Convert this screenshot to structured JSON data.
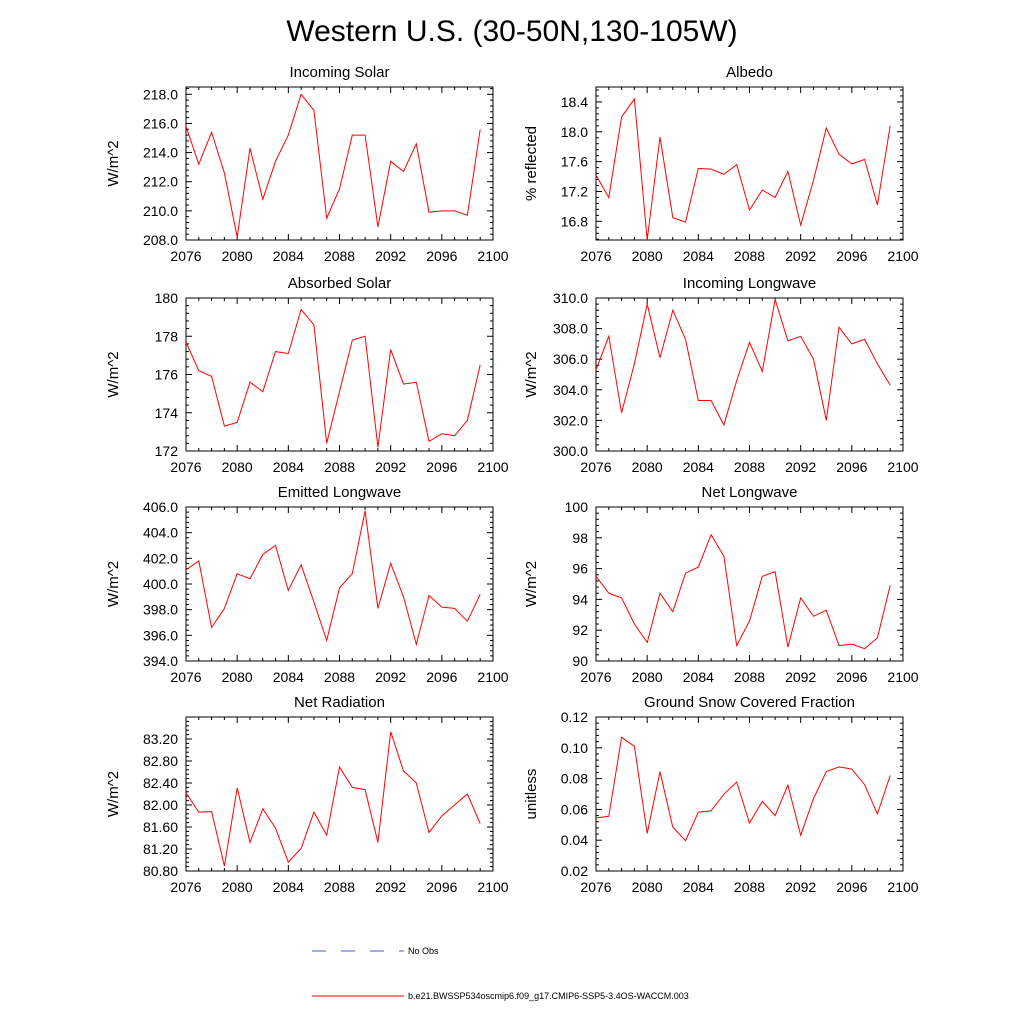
{
  "title": "Western U.S. (30-50N,130-105W)",
  "legend": {
    "obs_label": "No Obs",
    "model_label": "b.e21.BWSSP534oscmip6.f09_g17.CMIP6-SSP5-3.4OS-WACCM.003",
    "obs_color": "#4a55d6",
    "model_color": "#ff0000"
  },
  "colors": {
    "line": "#ff0000",
    "axis": "#000000"
  },
  "chart_data": [
    {
      "type": "line",
      "title": "Incoming Solar",
      "ylabel": "W/m^2",
      "xlim": [
        2076,
        2100
      ],
      "ylim": [
        208,
        218.5
      ],
      "xticks": [
        2076,
        2080,
        2084,
        2088,
        2092,
        2096,
        2100
      ],
      "yticks": [
        208,
        210,
        212,
        214,
        216,
        218
      ],
      "ydecimals": 1,
      "x": [
        2076,
        2077,
        2078,
        2079,
        2080,
        2081,
        2082,
        2083,
        2084,
        2085,
        2086,
        2087,
        2088,
        2089,
        2090,
        2091,
        2092,
        2093,
        2094,
        2095,
        2096,
        2097,
        2098,
        2099
      ],
      "y": [
        215.8,
        213.2,
        215.4,
        212.6,
        208.2,
        214.3,
        210.8,
        213.4,
        215.2,
        218.0,
        216.9,
        209.5,
        211.5,
        215.2,
        215.2,
        208.9,
        213.4,
        212.7,
        214.6,
        209.9,
        210.0,
        210.0,
        209.7,
        215.6
      ]
    },
    {
      "type": "line",
      "title": "Albedo",
      "ylabel": "% reflected",
      "xlim": [
        2076,
        2100
      ],
      "ylim": [
        16.55,
        18.6
      ],
      "xticks": [
        2076,
        2080,
        2084,
        2088,
        2092,
        2096,
        2100
      ],
      "yticks": [
        16.8,
        17.2,
        17.6,
        18.0,
        18.4
      ],
      "ydecimals": 1,
      "x": [
        2076,
        2077,
        2078,
        2079,
        2080,
        2081,
        2082,
        2083,
        2084,
        2085,
        2086,
        2087,
        2088,
        2089,
        2090,
        2091,
        2092,
        2093,
        2094,
        2095,
        2096,
        2097,
        2098,
        2099
      ],
      "y": [
        17.42,
        17.12,
        18.2,
        18.44,
        16.55,
        17.93,
        16.85,
        16.79,
        17.51,
        17.5,
        17.43,
        17.56,
        16.95,
        17.22,
        17.12,
        17.47,
        16.75,
        17.35,
        18.05,
        17.7,
        17.57,
        17.63,
        17.02,
        18.08
      ]
    },
    {
      "type": "line",
      "title": "Absorbed Solar",
      "ylabel": "W/m^2",
      "xlim": [
        2076,
        2100
      ],
      "ylim": [
        172,
        180
      ],
      "xticks": [
        2076,
        2080,
        2084,
        2088,
        2092,
        2096,
        2100
      ],
      "yticks": [
        172,
        174,
        176,
        178,
        180
      ],
      "ydecimals": 0,
      "x": [
        2076,
        2077,
        2078,
        2079,
        2080,
        2081,
        2082,
        2083,
        2084,
        2085,
        2086,
        2087,
        2088,
        2089,
        2090,
        2091,
        2092,
        2093,
        2094,
        2095,
        2096,
        2097,
        2098,
        2099
      ],
      "y": [
        177.7,
        176.2,
        175.9,
        173.3,
        173.5,
        175.6,
        175.1,
        177.2,
        177.1,
        179.4,
        178.6,
        172.4,
        175.1,
        177.8,
        178.0,
        172.2,
        177.3,
        175.5,
        175.6,
        172.5,
        172.9,
        172.8,
        173.6,
        176.5
      ]
    },
    {
      "type": "line",
      "title": "Incoming Longwave",
      "ylabel": "W/m^2",
      "xlim": [
        2076,
        2100
      ],
      "ylim": [
        300,
        310
      ],
      "xticks": [
        2076,
        2080,
        2084,
        2088,
        2092,
        2096,
        2100
      ],
      "yticks": [
        300,
        302,
        304,
        306,
        308,
        310
      ],
      "ydecimals": 1,
      "x": [
        2076,
        2077,
        2078,
        2079,
        2080,
        2081,
        2082,
        2083,
        2084,
        2085,
        2086,
        2087,
        2088,
        2089,
        2090,
        2091,
        2092,
        2093,
        2094,
        2095,
        2096,
        2097,
        2098,
        2099
      ],
      "y": [
        305.3,
        307.5,
        302.5,
        305.7,
        309.6,
        306.1,
        309.2,
        307.3,
        303.3,
        303.3,
        301.7,
        304.6,
        307.1,
        305.2,
        309.9,
        307.2,
        307.5,
        306.0,
        302.0,
        308.1,
        307.0,
        307.3,
        305.7,
        304.3
      ]
    },
    {
      "type": "line",
      "title": "Emitted Longwave",
      "ylabel": "W/m^2",
      "xlim": [
        2076,
        2100
      ],
      "ylim": [
        394,
        406
      ],
      "xticks": [
        2076,
        2080,
        2084,
        2088,
        2092,
        2096,
        2100
      ],
      "yticks": [
        394,
        396,
        398,
        400,
        402,
        404,
        406
      ],
      "ydecimals": 1,
      "x": [
        2076,
        2077,
        2078,
        2079,
        2080,
        2081,
        2082,
        2083,
        2084,
        2085,
        2086,
        2087,
        2088,
        2089,
        2090,
        2091,
        2092,
        2093,
        2094,
        2095,
        2096,
        2097,
        2098,
        2099
      ],
      "y": [
        401.1,
        401.8,
        396.6,
        398.1,
        400.8,
        400.4,
        402.3,
        403.0,
        399.5,
        401.5,
        398.6,
        395.6,
        399.7,
        400.8,
        405.7,
        398.1,
        401.6,
        399.0,
        395.3,
        399.1,
        398.2,
        398.1,
        397.1,
        399.2
      ]
    },
    {
      "type": "line",
      "title": "Net Longwave",
      "ylabel": "W/m^2",
      "xlim": [
        2076,
        2100
      ],
      "ylim": [
        90,
        100
      ],
      "xticks": [
        2076,
        2080,
        2084,
        2088,
        2092,
        2096,
        2100
      ],
      "yticks": [
        90,
        92,
        94,
        96,
        98,
        100
      ],
      "ydecimals": 0,
      "x": [
        2076,
        2077,
        2078,
        2079,
        2080,
        2081,
        2082,
        2083,
        2084,
        2085,
        2086,
        2087,
        2088,
        2089,
        2090,
        2091,
        2092,
        2093,
        2094,
        2095,
        2096,
        2097,
        2098,
        2099
      ],
      "y": [
        95.5,
        94.4,
        94.1,
        92.4,
        91.2,
        94.4,
        93.2,
        95.7,
        96.1,
        98.2,
        96.8,
        91.0,
        92.6,
        95.5,
        95.8,
        90.9,
        94.1,
        92.9,
        93.3,
        91.0,
        91.1,
        90.8,
        91.5,
        94.9
      ]
    },
    {
      "type": "line",
      "title": "Net Radiation",
      "ylabel": "W/m^2",
      "xlim": [
        2076,
        2100
      ],
      "ylim": [
        80.8,
        83.6
      ],
      "xticks": [
        2076,
        2080,
        2084,
        2088,
        2092,
        2096,
        2100
      ],
      "yticks": [
        80.8,
        81.2,
        81.6,
        82.0,
        82.4,
        82.8,
        83.2
      ],
      "ydecimals": 2,
      "x": [
        2076,
        2077,
        2078,
        2079,
        2080,
        2081,
        2082,
        2083,
        2084,
        2085,
        2086,
        2087,
        2088,
        2089,
        2090,
        2091,
        2092,
        2093,
        2094,
        2095,
        2096,
        2097,
        2098,
        2099
      ],
      "y": [
        82.22,
        81.87,
        81.88,
        80.89,
        82.31,
        81.32,
        81.93,
        81.58,
        80.96,
        81.21,
        81.87,
        81.45,
        82.69,
        82.32,
        82.28,
        81.32,
        83.33,
        82.62,
        82.4,
        81.5,
        81.8,
        82.0,
        82.2,
        81.66
      ]
    },
    {
      "type": "line",
      "title": "Ground Snow Covered Fraction",
      "ylabel": "unitless",
      "xlim": [
        2076,
        2100
      ],
      "ylim": [
        0.02,
        0.12
      ],
      "xticks": [
        2076,
        2080,
        2084,
        2088,
        2092,
        2096,
        2100
      ],
      "yticks": [
        0.02,
        0.04,
        0.06,
        0.08,
        0.1,
        0.12
      ],
      "ydecimals": 2,
      "x": [
        2076,
        2077,
        2078,
        2079,
        2080,
        2081,
        2082,
        2083,
        2084,
        2085,
        2086,
        2087,
        2088,
        2089,
        2090,
        2091,
        2092,
        2093,
        2094,
        2095,
        2096,
        2097,
        2098,
        2099
      ],
      "y": [
        0.0545,
        0.0555,
        0.1068,
        0.101,
        0.0444,
        0.0845,
        0.0485,
        0.0397,
        0.0582,
        0.0591,
        0.0699,
        0.0778,
        0.0512,
        0.0652,
        0.056,
        0.0757,
        0.0432,
        0.067,
        0.0845,
        0.0876,
        0.0862,
        0.0761,
        0.0571,
        0.082
      ]
    }
  ]
}
